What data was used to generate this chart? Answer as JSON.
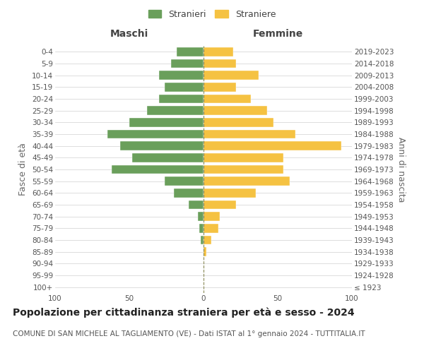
{
  "age_groups": [
    "100+",
    "95-99",
    "90-94",
    "85-89",
    "80-84",
    "75-79",
    "70-74",
    "65-69",
    "60-64",
    "55-59",
    "50-54",
    "45-49",
    "40-44",
    "35-39",
    "30-34",
    "25-29",
    "20-24",
    "15-19",
    "10-14",
    "5-9",
    "0-4"
  ],
  "birth_years": [
    "≤ 1923",
    "1924-1928",
    "1929-1933",
    "1934-1938",
    "1939-1943",
    "1944-1948",
    "1949-1953",
    "1954-1958",
    "1959-1963",
    "1964-1968",
    "1969-1973",
    "1974-1978",
    "1979-1983",
    "1984-1988",
    "1989-1993",
    "1994-1998",
    "1999-2003",
    "2004-2008",
    "2009-2013",
    "2014-2018",
    "2019-2023"
  ],
  "maschi": [
    0,
    0,
    0,
    0,
    2,
    3,
    4,
    10,
    20,
    26,
    62,
    48,
    56,
    65,
    50,
    38,
    30,
    26,
    30,
    22,
    18
  ],
  "femmine": [
    0,
    0,
    0,
    2,
    5,
    10,
    11,
    22,
    35,
    58,
    54,
    54,
    93,
    62,
    47,
    43,
    32,
    22,
    37,
    22,
    20
  ],
  "maschi_color": "#6a9f5b",
  "femmine_color": "#f5c242",
  "background_color": "#ffffff",
  "grid_color": "#d0d0d0",
  "title": "Popolazione per cittadinanza straniera per età e sesso - 2024",
  "subtitle": "COMUNE DI SAN MICHELE AL TAGLIAMENTO (VE) - Dati ISTAT al 1° gennaio 2024 - TUTTITALIA.IT",
  "ylabel_left": "Fasce di età",
  "ylabel_right": "Anni di nascita",
  "xlabel_left": "Maschi",
  "xlabel_right": "Femmine",
  "legend_stranieri": "Stranieri",
  "legend_straniere": "Straniere",
  "xlim": 100,
  "title_fontsize": 10,
  "subtitle_fontsize": 7.5,
  "tick_fontsize": 7.5,
  "label_fontsize": 9
}
